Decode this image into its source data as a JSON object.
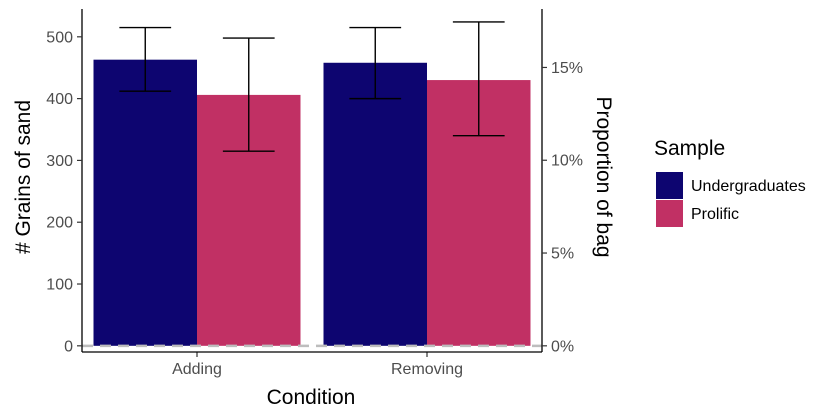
{
  "chart_data": {
    "type": "bar",
    "categories": [
      "Adding",
      "Removing"
    ],
    "series": [
      {
        "name": "Undergraduates",
        "color": "#0d0570",
        "values": [
          463,
          458
        ],
        "err_low": [
          412,
          400
        ],
        "err_high": [
          515,
          515
        ]
      },
      {
        "name": "Prolific",
        "color": "#c13064",
        "values": [
          406,
          430
        ],
        "err_low": [
          315,
          340
        ],
        "err_high": [
          498,
          524
        ]
      }
    ],
    "xlabel": "Condition",
    "ylabel": "# Grains of sand",
    "y2label": "Proportion of bag",
    "ylim": [
      -10,
      545
    ],
    "yticks": [
      0,
      100,
      200,
      300,
      400,
      500
    ],
    "yticklabels": [
      "0",
      "100",
      "200",
      "300",
      "400",
      "500"
    ],
    "y2ticks": [
      0,
      5,
      10,
      15
    ],
    "y2ticklabels": [
      "0%",
      "5%",
      "10%",
      "15%"
    ],
    "y2_max_percent": 18.15,
    "reference_line": {
      "y": 0,
      "style": "dashed",
      "color": "#bdbdbd"
    },
    "legend": {
      "title": "Sample",
      "position": "right"
    },
    "grid": false
  }
}
